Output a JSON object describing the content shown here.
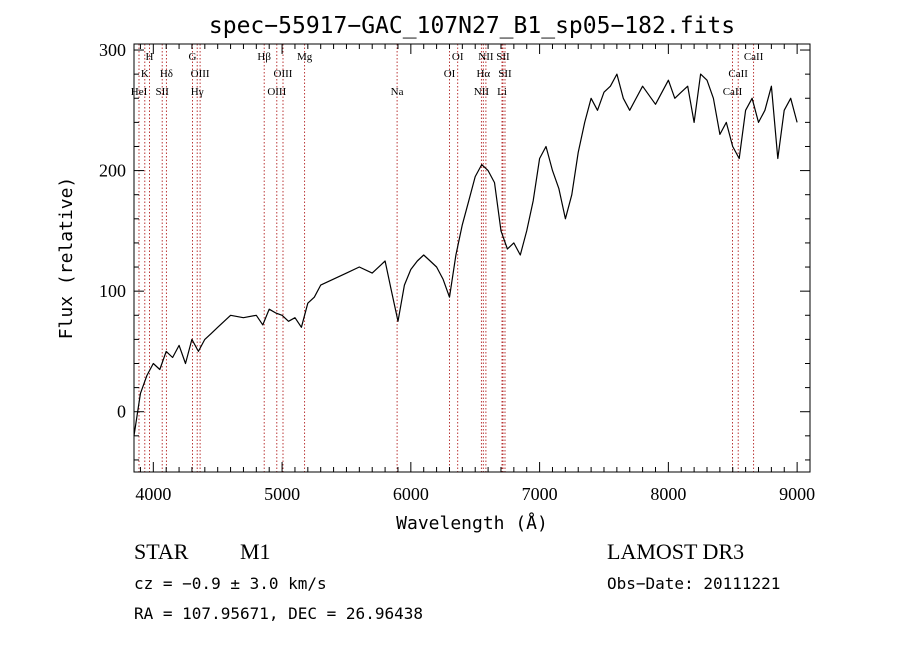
{
  "chart_data": {
    "type": "line",
    "title": "spec−55917−GAC_107N27_B1_sp05−182.fits",
    "xlabel": "Wavelength (Å)",
    "ylabel": "Flux (relative)",
    "xlim": [
      3850,
      9100
    ],
    "ylim": [
      -50,
      305
    ],
    "xticks": [
      4000,
      5000,
      6000,
      7000,
      8000,
      9000
    ],
    "yticks": [
      0,
      100,
      200,
      300
    ],
    "series": [
      {
        "name": "flux",
        "x": [
          3850,
          3900,
          3950,
          4000,
          4050,
          4100,
          4150,
          4200,
          4250,
          4300,
          4350,
          4400,
          4450,
          4500,
          4600,
          4700,
          4800,
          4850,
          4900,
          4950,
          5000,
          5050,
          5100,
          5150,
          5200,
          5250,
          5300,
          5400,
          5500,
          5600,
          5700,
          5800,
          5850,
          5900,
          5950,
          6000,
          6050,
          6100,
          6150,
          6200,
          6250,
          6300,
          6350,
          6400,
          6450,
          6500,
          6550,
          6600,
          6650,
          6700,
          6750,
          6800,
          6850,
          6900,
          6950,
          7000,
          7050,
          7100,
          7150,
          7200,
          7250,
          7300,
          7350,
          7400,
          7450,
          7500,
          7550,
          7600,
          7650,
          7700,
          7800,
          7900,
          8000,
          8050,
          8100,
          8150,
          8200,
          8250,
          8300,
          8350,
          8400,
          8450,
          8500,
          8550,
          8600,
          8650,
          8700,
          8750,
          8800,
          8850,
          8900,
          8950,
          9000
        ],
        "values": [
          -20,
          15,
          30,
          40,
          35,
          50,
          45,
          55,
          40,
          60,
          50,
          60,
          65,
          70,
          80,
          78,
          80,
          72,
          85,
          82,
          80,
          75,
          78,
          70,
          90,
          95,
          105,
          110,
          115,
          120,
          115,
          125,
          100,
          75,
          105,
          118,
          125,
          130,
          125,
          120,
          110,
          95,
          130,
          155,
          175,
          195,
          205,
          200,
          190,
          150,
          135,
          140,
          130,
          150,
          175,
          210,
          220,
          200,
          185,
          160,
          180,
          215,
          240,
          260,
          250,
          265,
          270,
          280,
          260,
          250,
          270,
          255,
          275,
          260,
          265,
          270,
          240,
          280,
          275,
          260,
          230,
          240,
          220,
          210,
          250,
          260,
          240,
          250,
          270,
          210,
          250,
          260,
          240
        ]
      }
    ],
    "line_marks": [
      {
        "wl": 3889,
        "label": "HeI",
        "row": 3
      },
      {
        "wl": 3934,
        "label": "K",
        "row": 2
      },
      {
        "wl": 3970,
        "label": "H",
        "row": 1
      },
      {
        "wl": 4069,
        "label": "SII",
        "row": 3
      },
      {
        "wl": 4102,
        "label": "Hδ",
        "row": 2
      },
      {
        "wl": 4304,
        "label": "G",
        "row": 1
      },
      {
        "wl": 4341,
        "label": "Hγ",
        "row": 3
      },
      {
        "wl": 4363,
        "label": "OIII",
        "row": 2
      },
      {
        "wl": 4861,
        "label": "Hβ",
        "row": 1
      },
      {
        "wl": 4959,
        "label": "OIII",
        "row": 3
      },
      {
        "wl": 5007,
        "label": "OIII",
        "row": 2
      },
      {
        "wl": 5175,
        "label": "Mg",
        "row": 1
      },
      {
        "wl": 5893,
        "label": "Na",
        "row": 3
      },
      {
        "wl": 6300,
        "label": "OI",
        "row": 2
      },
      {
        "wl": 6364,
        "label": "OI",
        "row": 1
      },
      {
        "wl": 6548,
        "label": "NII",
        "row": 3
      },
      {
        "wl": 6563,
        "label": "Hα",
        "row": 2
      },
      {
        "wl": 6583,
        "label": "NII",
        "row": 1
      },
      {
        "wl": 6708,
        "label": "Li",
        "row": 3
      },
      {
        "wl": 6716,
        "label": "SII",
        "row": 1
      },
      {
        "wl": 6731,
        "label": "SII",
        "row": 2
      },
      {
        "wl": 8498,
        "label": "CaII",
        "row": 3
      },
      {
        "wl": 8542,
        "label": "CaII",
        "row": 2
      },
      {
        "wl": 8662,
        "label": "CaII",
        "row": 1
      }
    ]
  },
  "info": {
    "object_class": "STAR",
    "subclass": "M1",
    "survey": "LAMOST DR3",
    "cz": "cz = −0.9 ± 3.0 km/s",
    "obs_date": "Obs−Date: 20111221",
    "coords": "RA = 107.95671, DEC =  26.96438"
  }
}
